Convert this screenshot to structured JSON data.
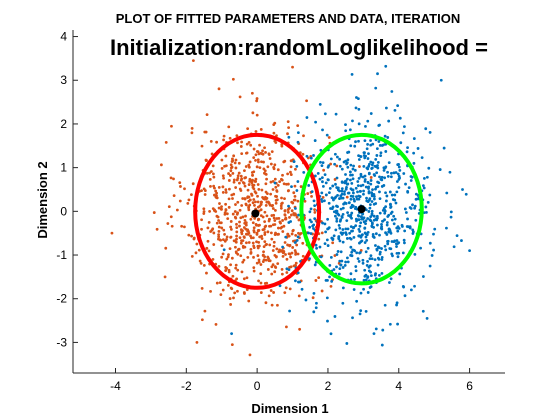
{
  "chart_data": {
    "type": "scatter",
    "title": "PLOT OF FITTED PARAMETERS AND DATA, ITERATION",
    "annotations": [
      "Initialization:random",
      "Loglikelihood ="
    ],
    "xlabel": "Dimension 1",
    "ylabel": "Dimension 2",
    "xlim": [
      -5.2,
      7.0
    ],
    "ylim": [
      -3.7,
      4.15
    ],
    "xticks": [
      -4,
      -2,
      0,
      2,
      4,
      6
    ],
    "yticks": [
      -3,
      -2,
      -1,
      0,
      1,
      2,
      3,
      4
    ],
    "grid": false,
    "box": "left-bottom",
    "series": [
      {
        "color": "#D95319",
        "marker_size": 1.4,
        "center": [
          0,
          0
        ],
        "spread": [
          1.0,
          1.0
        ],
        "point_count": 800,
        "outliers": [
          [
            -4.1,
            -0.5
          ],
          [
            -1.7,
            -3.0
          ],
          [
            -0.7,
            -3.05
          ],
          [
            -2.6,
            -1.5
          ],
          [
            1.0,
            3.3
          ],
          [
            -1.8,
            3.45
          ],
          [
            1.2,
            -2.7
          ]
        ]
      },
      {
        "color": "#0072BD",
        "marker_size": 1.4,
        "center": [
          3,
          0
        ],
        "spread": [
          0.95,
          1.0
        ],
        "point_count": 800,
        "outliers": [
          [
            5.2,
            3.0
          ],
          [
            3.4,
            3.15
          ],
          [
            6.0,
            -0.9
          ],
          [
            4.8,
            -2.45
          ],
          [
            1.6,
            -2.3
          ],
          [
            3.3,
            -2.8
          ],
          [
            5.8,
            0.5
          ]
        ]
      }
    ],
    "ellipses": [
      {
        "color": "#FF0000",
        "center": [
          0,
          0
        ],
        "rx": 1.75,
        "ry": 1.75
      },
      {
        "color": "#00FF00",
        "center": [
          2.95,
          0.05
        ],
        "rx": 1.7,
        "ry": 1.7
      }
    ],
    "means": [
      {
        "color": "#000000",
        "x": -0.05,
        "y": -0.05
      },
      {
        "color": "#000000",
        "x": 2.95,
        "y": 0.05
      }
    ]
  }
}
